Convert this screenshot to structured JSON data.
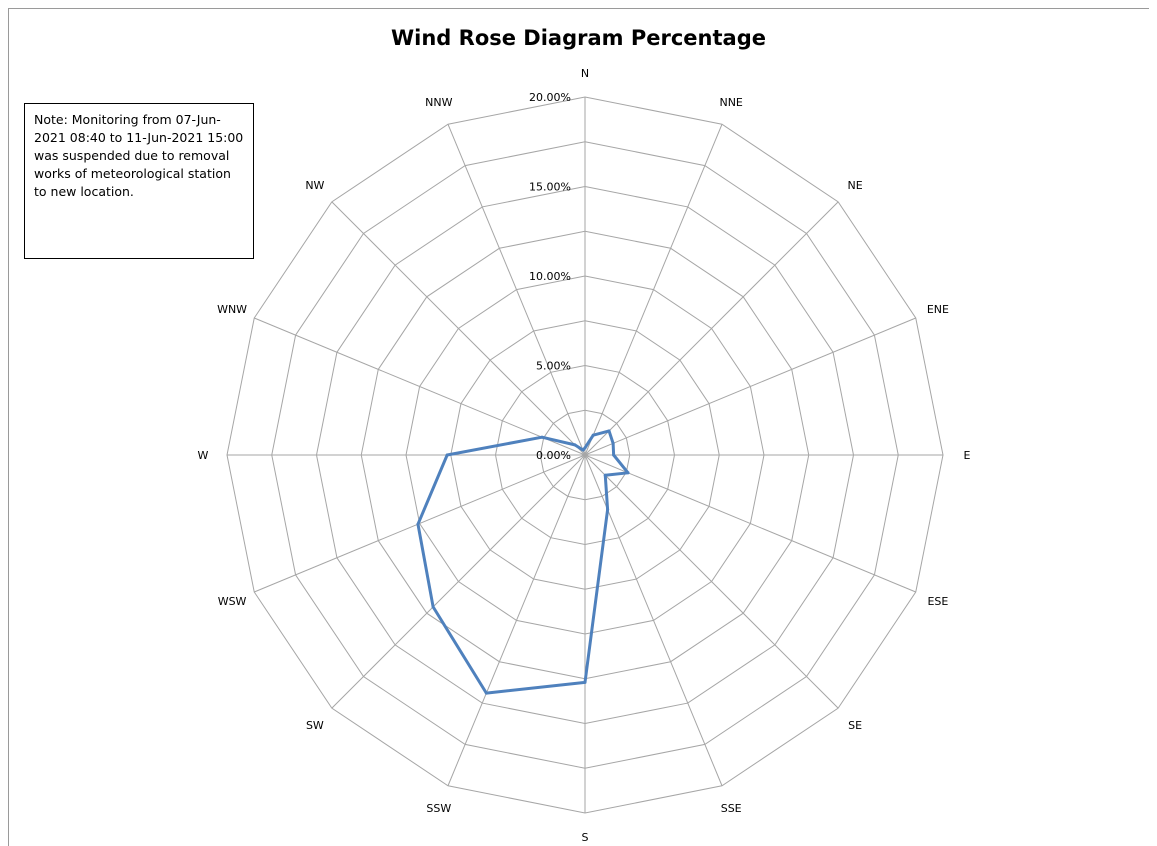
{
  "chart_data": {
    "type": "radar",
    "title": "Wind Rose Diagram Percentage",
    "directions": [
      "N",
      "NNE",
      "NE",
      "ENE",
      "E",
      "ESE",
      "SE",
      "SSE",
      "S",
      "SSW",
      "SW",
      "WSW",
      "W",
      "WNW",
      "NW",
      "NNW"
    ],
    "tick_labels": [
      "0.00%",
      "5.00%",
      "10.00%",
      "15.00%",
      "20.00%"
    ],
    "range": [
      0,
      20
    ],
    "grid_step": 2.5,
    "series": [
      {
        "color": "#4f81bd",
        "values": [
          0.4,
          1.2,
          1.9,
          1.7,
          1.6,
          2.6,
          1.6,
          3.3,
          12.7,
          14.4,
          12.0,
          10.1,
          7.7,
          2.6,
          0.8,
          0.3
        ]
      }
    ],
    "note": "Note: Monitoring from 07-Jun-2021 08:40 to 11-Jun-2021 15:00 was suspended due to removal works of meteorological station to new location."
  }
}
